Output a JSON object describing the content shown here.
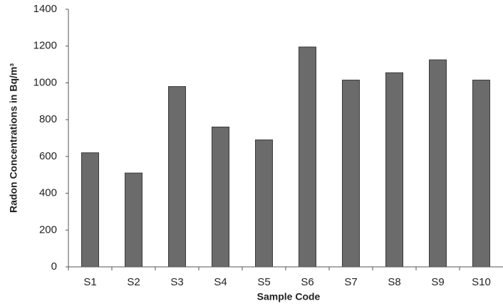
{
  "chart_data": {
    "type": "bar",
    "x_label": "Sample Code",
    "y_label": "Radon Concentrations in Bq/m³",
    "categories": [
      "S1",
      "S2",
      "S3",
      "S4",
      "S5",
      "S6",
      "S7",
      "S8",
      "S9",
      "S10"
    ],
    "values": [
      620,
      510,
      980,
      760,
      690,
      1195,
      1015,
      1055,
      1125,
      1015
    ],
    "color": "#6b6b6b",
    "ylim": [
      0,
      1400
    ],
    "yticks": [
      0,
      200,
      400,
      600,
      800,
      1000,
      1200,
      1400
    ],
    "grid": false
  }
}
